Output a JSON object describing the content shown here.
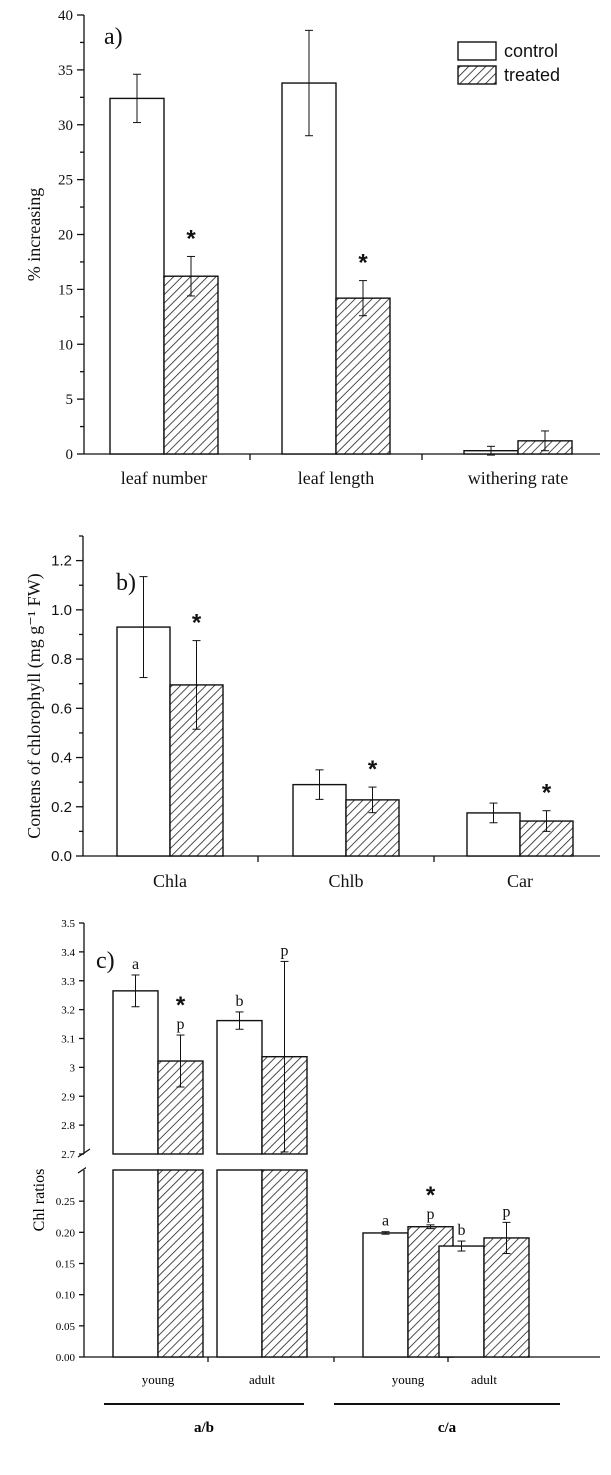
{
  "chart_data": [
    {
      "panel": "a)",
      "type": "bar",
      "ylabel": "% increasing",
      "ylim": [
        0,
        40
      ],
      "yticks": [
        "0",
        "5",
        "10",
        "15",
        "20",
        "25",
        "30",
        "35",
        "40"
      ],
      "categories": [
        "leaf number",
        "leaf length",
        "withering rate"
      ],
      "series": [
        {
          "name": "control",
          "values": [
            32.4,
            33.8,
            0.3
          ],
          "errors": [
            2.2,
            4.8,
            0.4
          ]
        },
        {
          "name": "treated",
          "values": [
            16.2,
            14.2,
            1.2
          ],
          "errors": [
            1.8,
            1.6,
            0.9
          ]
        }
      ],
      "significance": [
        {
          "category": 0,
          "series": 1,
          "mark": "*"
        },
        {
          "category": 1,
          "series": 1,
          "mark": "*"
        }
      ],
      "legend": {
        "position": "top-right",
        "entries": [
          "control",
          "treated"
        ]
      }
    },
    {
      "panel": "b)",
      "type": "bar",
      "ylabel": "Contens of chlorophyll (mg g⁻¹ FW)",
      "ylim": [
        0,
        1.3
      ],
      "yticks": [
        "0.0",
        "0.2",
        "0.4",
        "0.6",
        "0.8",
        "1.0",
        "1.2"
      ],
      "categories": [
        "Chla",
        "Chlb",
        "Car"
      ],
      "series": [
        {
          "name": "control",
          "values": [
            0.93,
            0.29,
            0.175
          ],
          "errors": [
            0.205,
            0.06,
            0.04
          ]
        },
        {
          "name": "treated",
          "values": [
            0.695,
            0.228,
            0.142
          ],
          "errors": [
            0.18,
            0.052,
            0.042
          ]
        }
      ],
      "significance": [
        {
          "category": 0,
          "series": 1,
          "mark": "*"
        },
        {
          "category": 1,
          "series": 1,
          "mark": "*"
        },
        {
          "category": 2,
          "series": 1,
          "mark": "*"
        }
      ]
    },
    {
      "panel": "c)",
      "type": "bar",
      "ylabel": "Chl ratios",
      "ylim_upper": [
        2.7,
        3.5
      ],
      "yticks_upper": [
        "2.7",
        "2.8",
        "2.9",
        "3",
        "3.1",
        "3.2",
        "3.3",
        "3.4",
        "3.5"
      ],
      "ylim_lower": [
        0,
        0.3
      ],
      "yticks_lower": [
        "0.00",
        "0.05",
        "0.10",
        "0.15",
        "0.20",
        "0.25"
      ],
      "categories": [
        "young",
        "adult",
        "young",
        "adult"
      ],
      "groups": [
        {
          "label": "a/b",
          "categories": [
            0,
            1
          ]
        },
        {
          "label": "c/a",
          "categories": [
            2,
            3
          ]
        }
      ],
      "series": [
        {
          "name": "control",
          "values": [
            3.265,
            3.162,
            0.199,
            0.178
          ],
          "errors": [
            0.055,
            0.03,
            0.002,
            0.008
          ]
        },
        {
          "name": "treated",
          "values": [
            3.022,
            3.037,
            0.209,
            0.191
          ],
          "errors": [
            0.09,
            0.33,
            0.003,
            0.025
          ]
        }
      ],
      "annotations": [
        {
          "category": 0,
          "series": 0,
          "text": "a"
        },
        {
          "category": 0,
          "series": 1,
          "text": "p",
          "star": "*"
        },
        {
          "category": 1,
          "series": 0,
          "text": "b"
        },
        {
          "category": 1,
          "series": 1,
          "text": "p"
        },
        {
          "category": 2,
          "series": 0,
          "text": "a"
        },
        {
          "category": 2,
          "series": 1,
          "text": "p",
          "star": "*"
        },
        {
          "category": 3,
          "series": 0,
          "text": "b"
        },
        {
          "category": 3,
          "series": 1,
          "text": "p"
        }
      ]
    }
  ]
}
